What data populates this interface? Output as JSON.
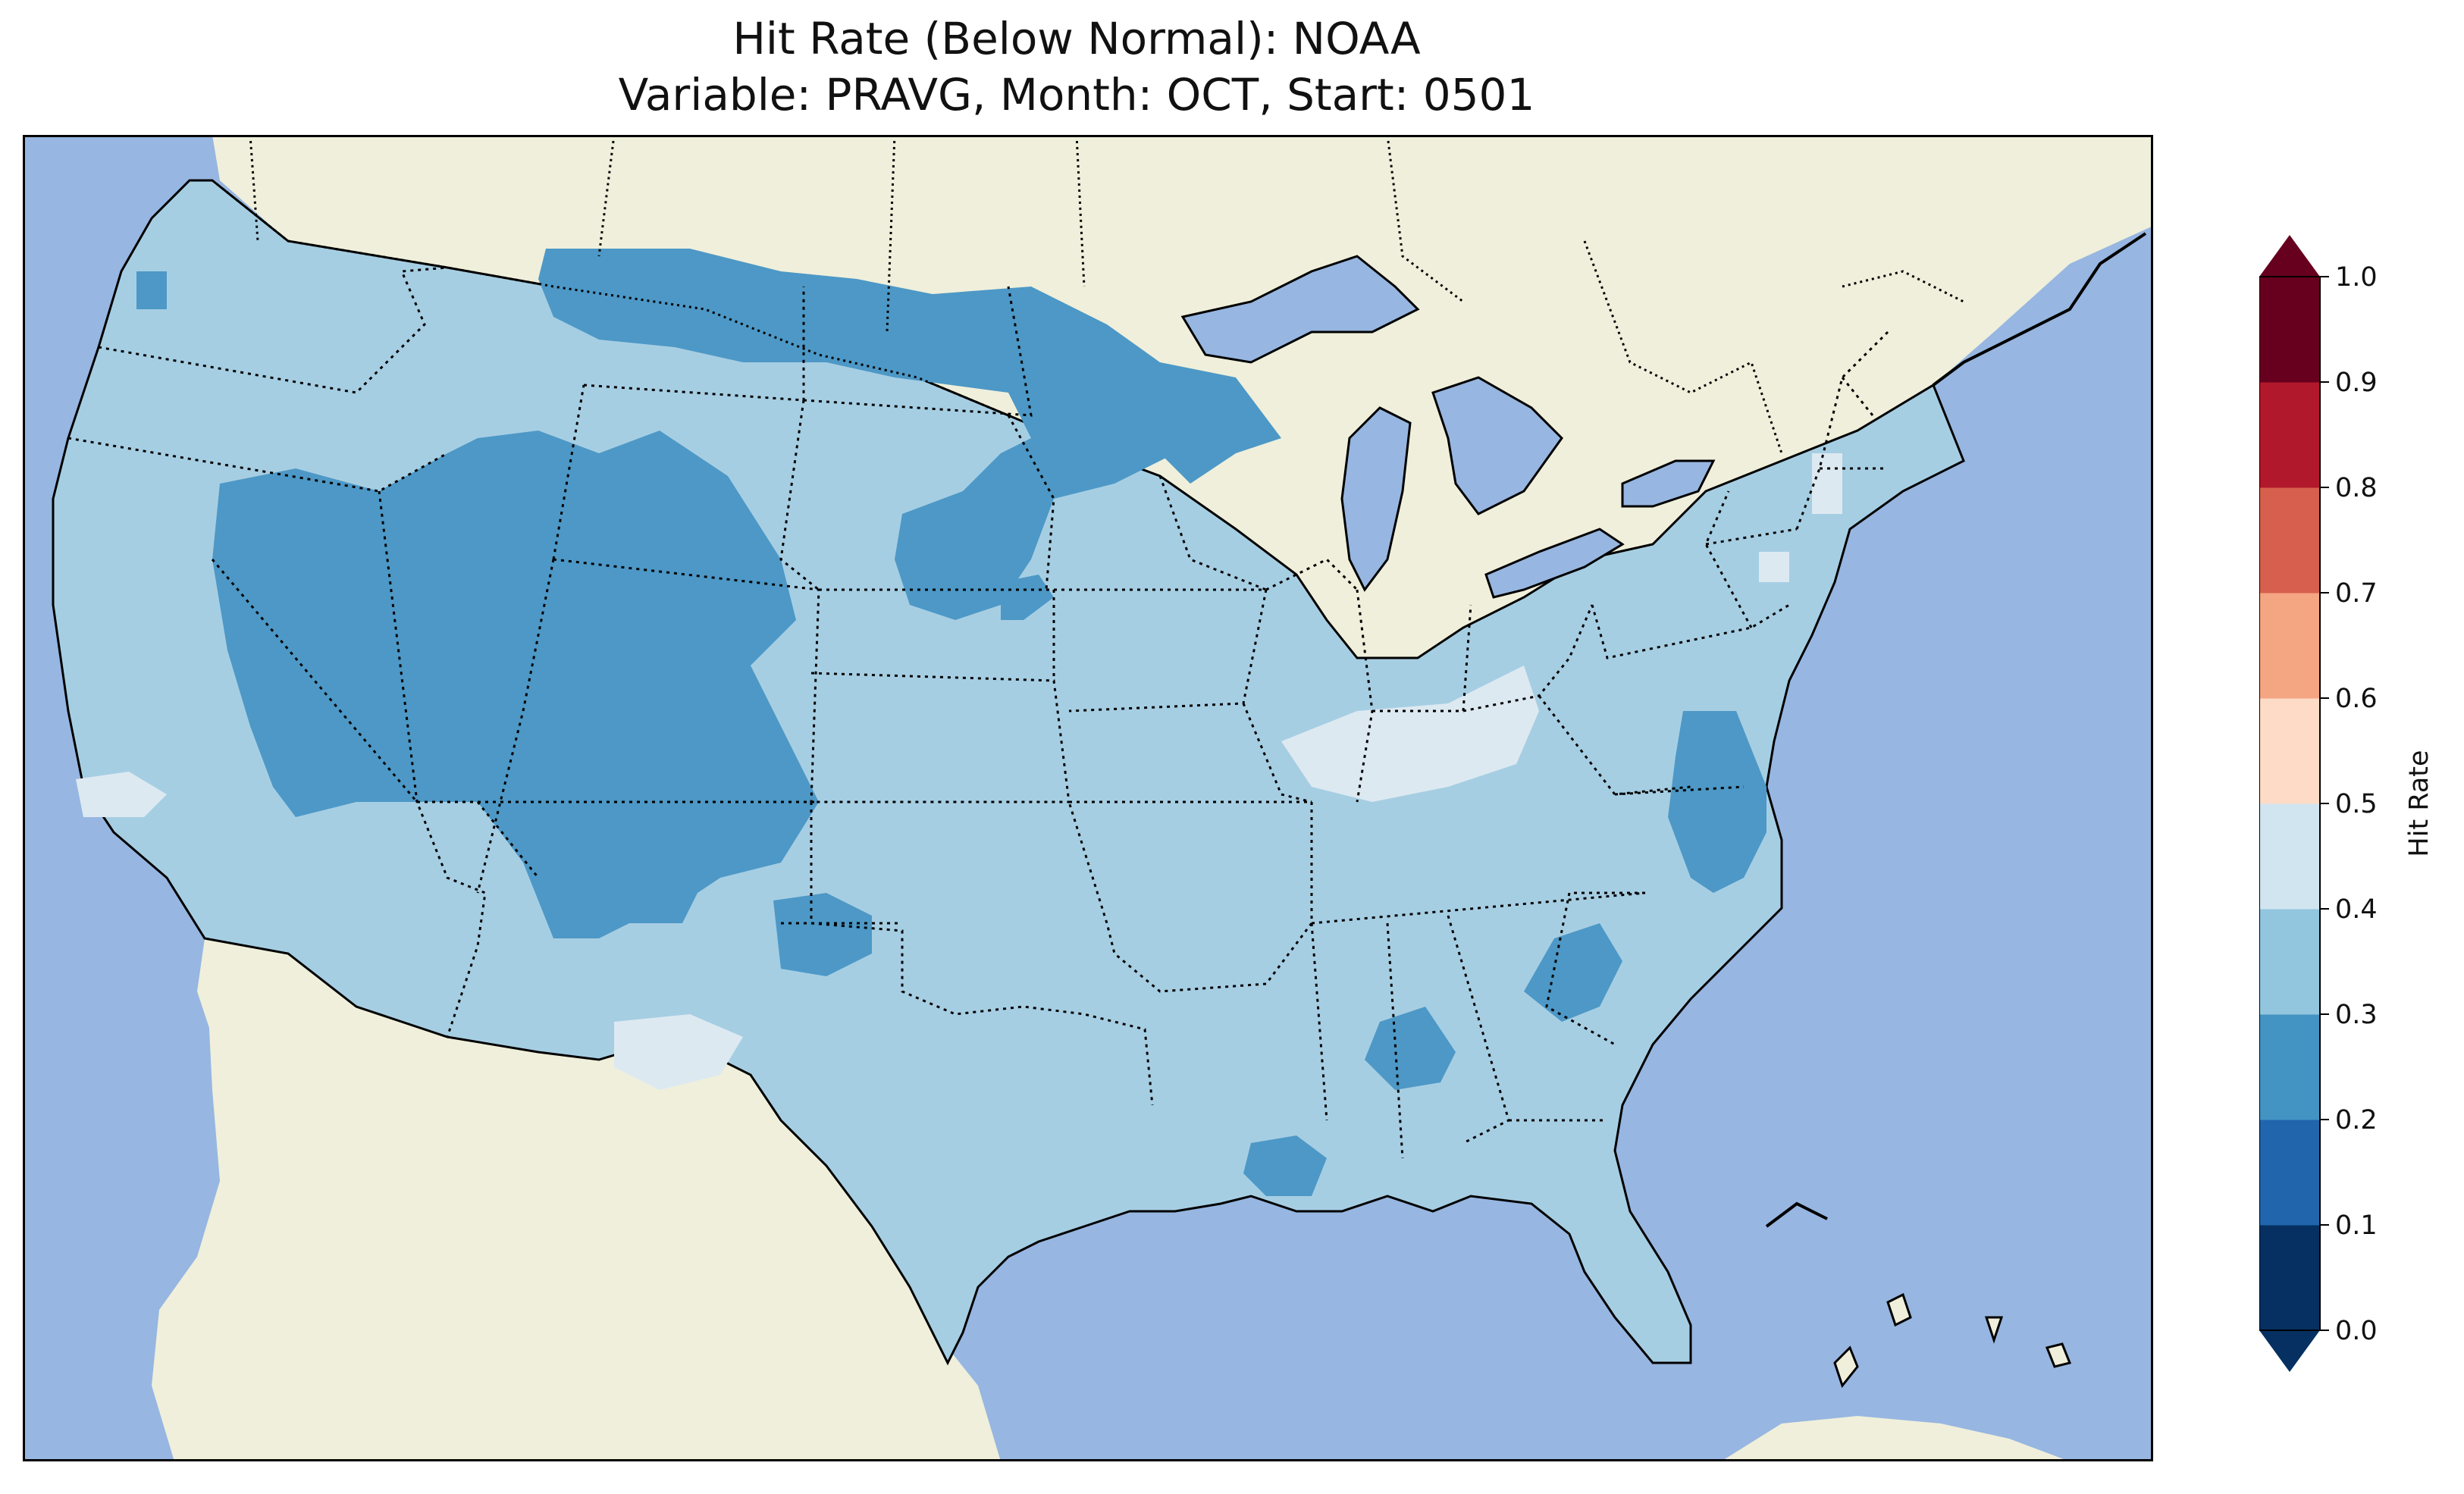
{
  "title": {
    "line1": "Hit Rate (Below Normal): NOAA",
    "line2": "Variable: PRAVG, Month: OCT, Start: 0501"
  },
  "colorbar": {
    "label": "Hit Rate",
    "ticks": [
      "0.0",
      "0.1",
      "0.2",
      "0.3",
      "0.4",
      "0.5",
      "0.6",
      "0.7",
      "0.8",
      "0.9",
      "1.0"
    ],
    "colors": [
      "#053061",
      "#2166ac",
      "#4393c3",
      "#92c5de",
      "#d1e5f0",
      "#fddbc7",
      "#f4a582",
      "#d6604d",
      "#b2182b",
      "#67001f"
    ],
    "extend": "both"
  },
  "map": {
    "ocean_color": "#97b6e1",
    "land_color": "#efefdb",
    "lake_color": "#97b6e1",
    "dominant_class_color": "#a6cee3"
  }
}
